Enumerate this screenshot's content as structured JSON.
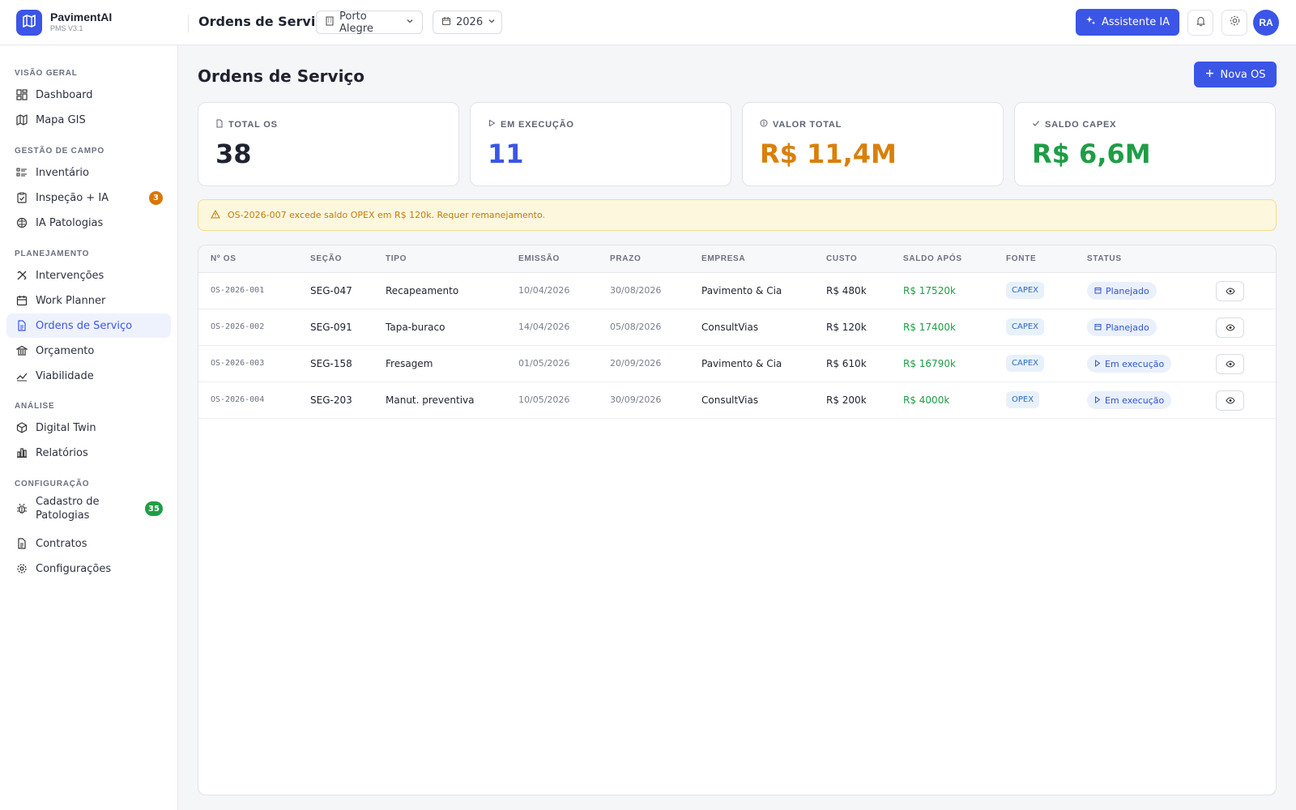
{
  "app": {
    "name": "PavimentAI",
    "version": "PMS V3.1"
  },
  "topbar": {
    "title": "Ordens de Serviço",
    "city": "Porto Alegre",
    "year": "2026",
    "assistant_label": "Assistente IA",
    "avatar_initials": "RA"
  },
  "sidebar": {
    "sections": [
      {
        "title": "VISÃO GERAL",
        "items": [
          {
            "label": "Dashboard",
            "icon": "dashboard-icon"
          },
          {
            "label": "Mapa GIS",
            "icon": "map-icon"
          }
        ]
      },
      {
        "title": "GESTÃO DE CAMPO",
        "items": [
          {
            "label": "Inventário",
            "icon": "list-icon"
          },
          {
            "label": "Inspeção + IA",
            "icon": "clipboard-icon",
            "badge": "3"
          },
          {
            "label": "IA Patologias",
            "icon": "brain-icon"
          }
        ]
      },
      {
        "title": "PLANEJAMENTO",
        "items": [
          {
            "label": "Intervenções",
            "icon": "tools-icon"
          },
          {
            "label": "Work Planner",
            "icon": "calendar-icon"
          },
          {
            "label": "Ordens de Serviço",
            "icon": "document-icon",
            "active": true
          },
          {
            "label": "Orçamento",
            "icon": "bank-icon"
          },
          {
            "label": "Viabilidade",
            "icon": "trend-icon"
          }
        ]
      },
      {
        "title": "ANÁLISE",
        "items": [
          {
            "label": "Digital Twin",
            "icon": "cube-icon"
          },
          {
            "label": "Relatórios",
            "icon": "bar-chart-icon"
          }
        ]
      },
      {
        "title": "CONFIGURAÇÃO",
        "items": [
          {
            "label": "Cadastro de",
            "label2": "Patologias",
            "icon": "bug-icon",
            "badge": "35"
          },
          {
            "label": "Contratos",
            "icon": "contract-icon"
          },
          {
            "label": "Configurações",
            "icon": "gear-icon"
          }
        ]
      }
    ],
    "badge_colors": {
      "warning": "#d97706",
      "success": "#1f9d46"
    }
  },
  "main": {
    "title": "Ordens de Serviço",
    "new_button": "Nova OS",
    "kpis": [
      {
        "label": "TOTAL OS",
        "value": "38",
        "color": "#1f2330",
        "icon": "document-icon"
      },
      {
        "label": "EM EXECUÇÃO",
        "value": "11",
        "color": "#3b55e6",
        "icon": "play-icon"
      },
      {
        "label": "VALOR TOTAL",
        "value": "R$ 11,4M",
        "color": "#d9800b",
        "icon": "coin-icon"
      },
      {
        "label": "SALDO CAPEX",
        "value": "R$ 6,6M",
        "color": "#1f9d46",
        "icon": "check-icon"
      }
    ],
    "alert": "OS-2026-007 excede saldo OPEX em R$ 120k. Requer remanejamento.",
    "table": {
      "columns": [
        "Nº OS",
        "SEÇÃO",
        "TIPO",
        "EMISSÃO",
        "PRAZO",
        "EMPRESA",
        "CUSTO",
        "SALDO APÓS",
        "FONTE",
        "STATUS"
      ],
      "rows": [
        {
          "os": "OS-2026-001",
          "secao": "SEG-047",
          "tipo": "Recapeamento",
          "emissao": "10/04/2026",
          "prazo": "30/08/2026",
          "empresa": "Pavimento & Cia",
          "custo": "R$ 480k",
          "saldo": "R$ 17520k",
          "fonte": "CAPEX",
          "status": "Planejado",
          "status_icon": "calendar-icon"
        },
        {
          "os": "OS-2026-002",
          "secao": "SEG-091",
          "tipo": "Tapa-buraco",
          "emissao": "14/04/2026",
          "prazo": "05/08/2026",
          "empresa": "ConsultVias",
          "custo": "R$ 120k",
          "saldo": "R$ 17400k",
          "fonte": "CAPEX",
          "status": "Planejado",
          "status_icon": "calendar-icon"
        },
        {
          "os": "OS-2026-003",
          "secao": "SEG-158",
          "tipo": "Fresagem",
          "emissao": "01/05/2026",
          "prazo": "20/09/2026",
          "empresa": "Pavimento & Cia",
          "custo": "R$ 610k",
          "saldo": "R$ 16790k",
          "fonte": "CAPEX",
          "status": "Em execução",
          "status_icon": "play-icon"
        },
        {
          "os": "OS-2026-004",
          "secao": "SEG-203",
          "tipo": "Manut. preventiva",
          "emissao": "10/05/2026",
          "prazo": "30/09/2026",
          "empresa": "ConsultVias",
          "custo": "R$ 200k",
          "saldo": "R$ 4000k",
          "fonte": "OPEX",
          "status": "Em execução",
          "status_icon": "play-icon"
        }
      ]
    }
  }
}
